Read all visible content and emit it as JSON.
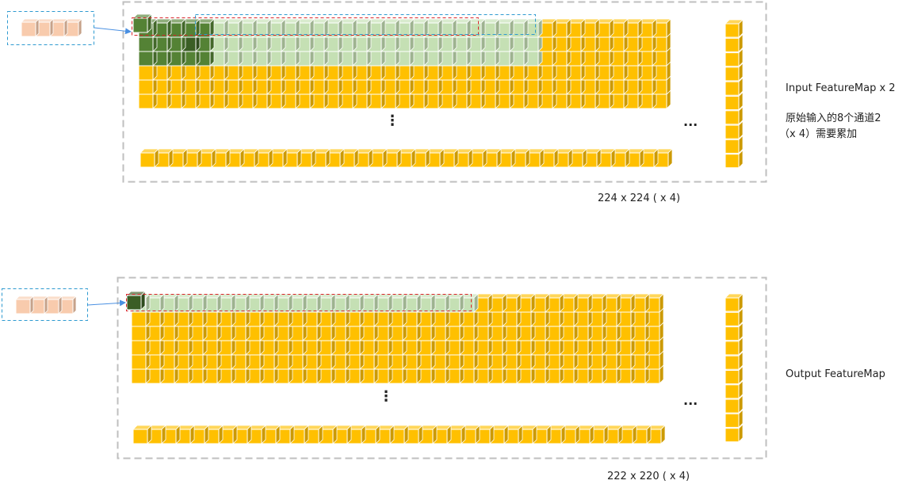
{
  "top_panel": {
    "title": "Input FeatureMap x 2",
    "note_line1": "原始输入的8个通道2",
    "note_line2": "（x 4）需要累加",
    "size_label": "224 x 224 ( x 4)",
    "ellipsis_vertical": "⋮",
    "ellipsis_horizontal": "..."
  },
  "bottom_panel": {
    "title": "Output FeatureMap",
    "size_label": "222 x 220 ( x 4)",
    "ellipsis_vertical": "⋮",
    "ellipsis_horizontal": "..."
  },
  "colors": {
    "cube_yellow": "#ffc000",
    "cube_light_green": "#c5e0b4",
    "cube_dark_green": "#548235",
    "cube_darker_green": "#3b5e25",
    "cube_peach": "#f8cbad",
    "dash_gray": "#bfbfbf",
    "dash_red": "#d9262b",
    "dash_blue": "#2e9ad0",
    "arrow_blue": "#4a90e2"
  }
}
